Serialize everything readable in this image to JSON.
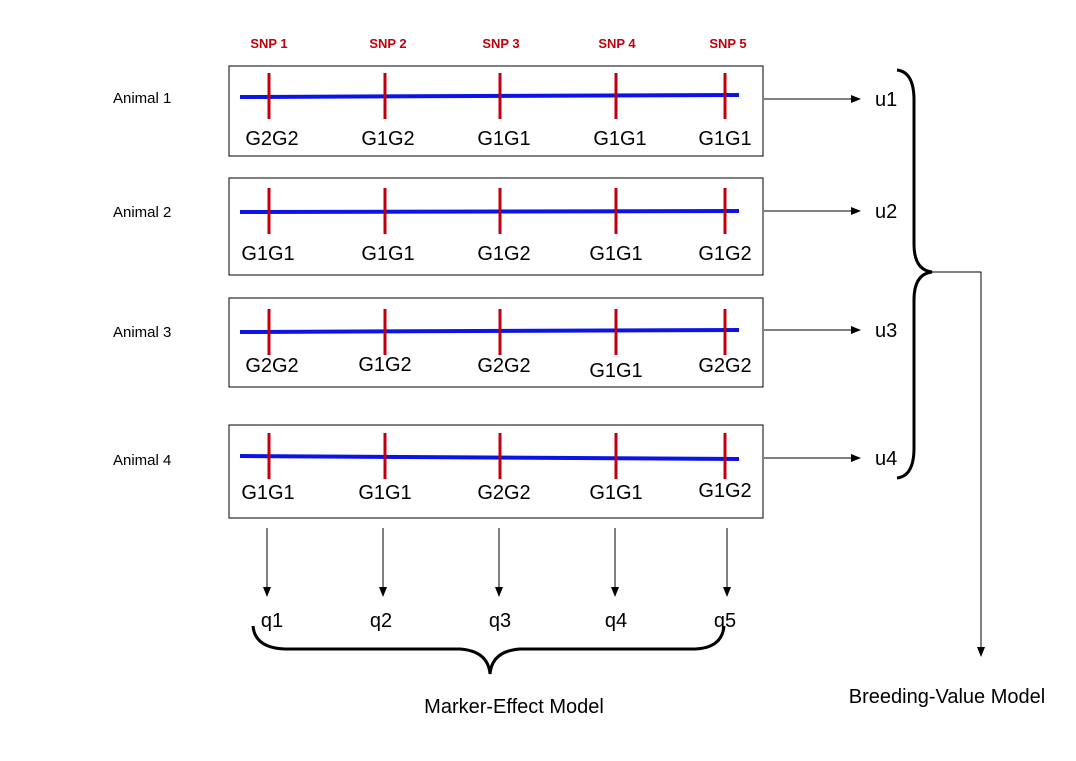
{
  "snps": [
    "SNP 1",
    "SNP 2",
    "SNP 3",
    "SNP 4",
    "SNP 5"
  ],
  "animals": [
    {
      "label": "Animal 1",
      "genotypes": [
        "G2G2",
        "G1G2",
        "G1G1",
        "G1G1",
        "G1G1"
      ],
      "output": "u1"
    },
    {
      "label": "Animal 2",
      "genotypes": [
        "G1G1",
        "G1G1",
        "G1G2",
        "G1G1",
        "G1G2"
      ],
      "output": "u2"
    },
    {
      "label": "Animal 3",
      "genotypes": [
        "G2G2",
        "G1G2",
        "G2G2",
        "G1G1",
        "G2G2"
      ],
      "output": "u3"
    },
    {
      "label": "Animal 4",
      "genotypes": [
        "G1G1",
        "G1G1",
        "G2G2",
        "G1G1",
        "G1G2"
      ],
      "output": "u4"
    }
  ],
  "marker_effects": [
    "q1",
    "q2",
    "q3",
    "q4",
    "q5"
  ],
  "models": {
    "marker_effect": "Marker-Effect Model",
    "breeding_value": "Breeding-Value Model"
  },
  "colors": {
    "chromosome": "#0a14e6",
    "snp_marker": "#c0000c",
    "snp_label": "#c0000c",
    "line": "#000000"
  }
}
